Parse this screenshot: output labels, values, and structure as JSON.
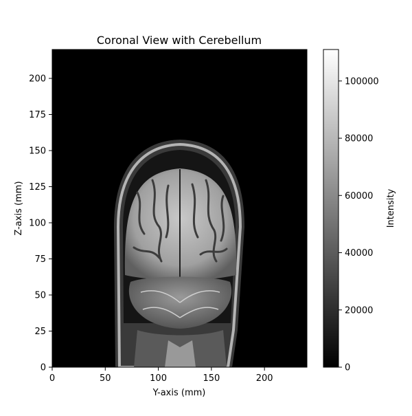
{
  "chart_data": {
    "type": "heatmap",
    "title": "Coronal View with Cerebellum",
    "xlabel": "Y-axis (mm)",
    "ylabel": "Z-axis (mm)",
    "xlim": [
      0,
      240
    ],
    "ylim": [
      0,
      220
    ],
    "x_ticks": [
      "0",
      "50",
      "100",
      "150",
      "200"
    ],
    "y_ticks": [
      "0",
      "25",
      "50",
      "75",
      "100",
      "125",
      "150",
      "175",
      "200"
    ],
    "colormap": "gray",
    "colorbar": {
      "label": "Intensity",
      "range": [
        0,
        111000
      ],
      "ticks": [
        "0",
        "20000",
        "40000",
        "60000",
        "80000",
        "100000"
      ]
    },
    "image_content": "coronal MRI slice showing head, cerebrum and cerebellum"
  },
  "colors": {
    "background": "#000000",
    "text": "#000000",
    "frame": "#000000"
  }
}
